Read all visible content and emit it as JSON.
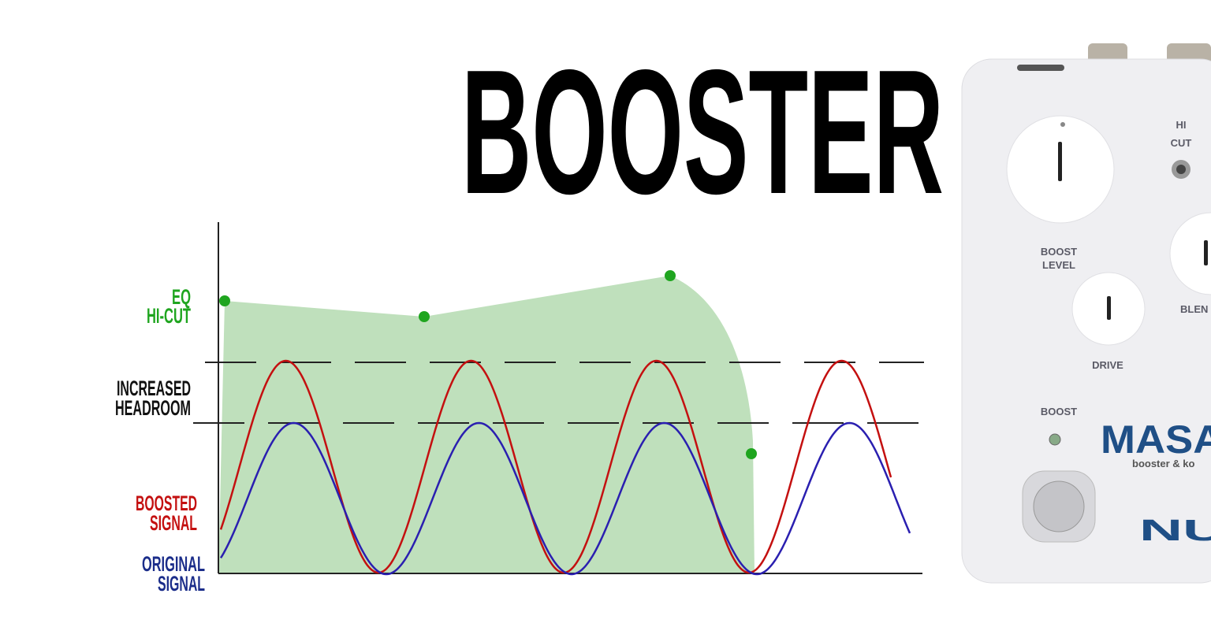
{
  "title": "BOOSTER",
  "labels": {
    "eq": [
      "EQ",
      "HI-CUT"
    ],
    "headroom": [
      "INCREASED",
      "HEADROOM"
    ],
    "boosted": [
      "BOOSTED",
      "SIGNAL"
    ],
    "original": [
      "ORIGINAL",
      "SIGNAL"
    ]
  },
  "pedal": {
    "hi": "HI",
    "cut": "CUT",
    "boost_level": [
      "BOOST",
      "LEVEL"
    ],
    "blend": "BLEN",
    "drive": "DRIVE",
    "boost": "BOOST",
    "brand": "MASAI",
    "tagline": "booster & ko",
    "logo": "NU"
  }
}
